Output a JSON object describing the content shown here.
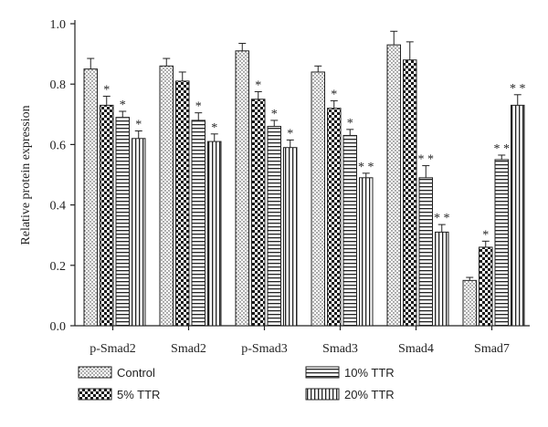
{
  "chart_data": {
    "type": "bar",
    "title": "",
    "xlabel": "",
    "ylabel": "Relative protein expression",
    "ylim": [
      0,
      1.0
    ],
    "yticks": [
      "0.0",
      "0.2",
      "0.4",
      "0.6",
      "0.8",
      "1.0"
    ],
    "categories": [
      "p-Smad2",
      "Smad2",
      "p-Smad3",
      "Smad3",
      "Smad4",
      "Smad7"
    ],
    "legend_position": "bottom",
    "series": [
      {
        "name": "Control",
        "pattern": "dots",
        "values": [
          0.85,
          0.86,
          0.91,
          0.84,
          0.93,
          0.15
        ],
        "errors": [
          0.035,
          0.025,
          0.025,
          0.02,
          0.045,
          0.01
        ],
        "significance": [
          "",
          "",
          "",
          "",
          "",
          ""
        ]
      },
      {
        "name": "5% TTR",
        "pattern": "checker",
        "values": [
          0.73,
          0.81,
          0.75,
          0.72,
          0.88,
          0.26
        ],
        "errors": [
          0.03,
          0.03,
          0.025,
          0.025,
          0.06,
          0.02
        ],
        "significance": [
          "*",
          "",
          "*",
          "*",
          "",
          "*"
        ]
      },
      {
        "name": "10% TTR",
        "pattern": "hstripes",
        "values": [
          0.69,
          0.68,
          0.66,
          0.63,
          0.49,
          0.55
        ],
        "errors": [
          0.02,
          0.025,
          0.02,
          0.02,
          0.04,
          0.015
        ],
        "significance": [
          "*",
          "*",
          "*",
          "*",
          "**",
          "**"
        ]
      },
      {
        "name": "20% TTR",
        "pattern": "vstripes",
        "values": [
          0.62,
          0.61,
          0.59,
          0.49,
          0.31,
          0.73
        ],
        "errors": [
          0.025,
          0.025,
          0.025,
          0.015,
          0.025,
          0.035
        ],
        "significance": [
          "*",
          "*",
          "*",
          "**",
          "**",
          "**"
        ]
      }
    ]
  }
}
